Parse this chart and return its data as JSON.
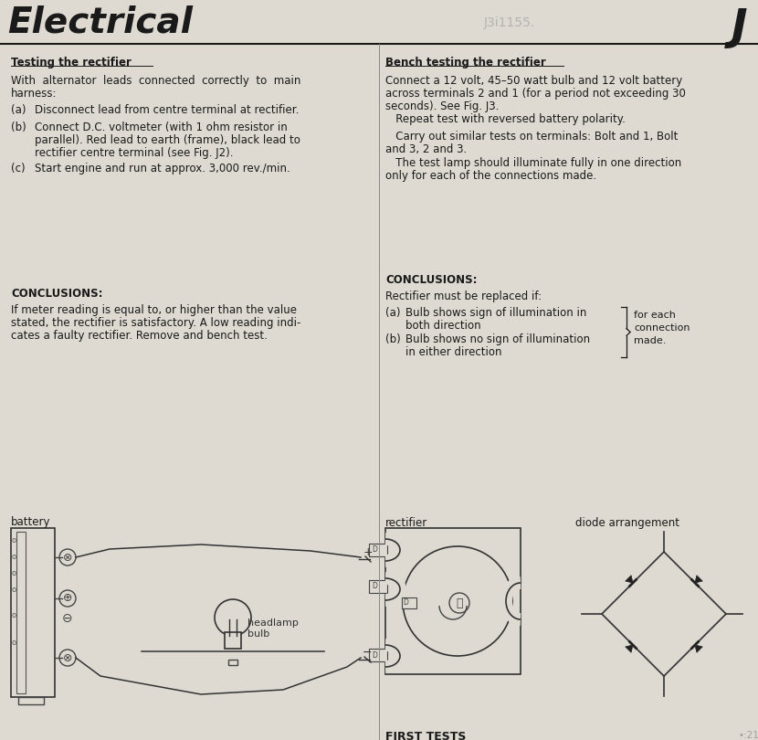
{
  "title": "Electrical",
  "bg_color": "#dedad2",
  "text_color": "#1a1a1a",
  "section_J": "J",
  "watermark": "J3i1155.",
  "page_num": "•:21",
  "left_col": {
    "heading1": "Testing the rectifier",
    "para1a": "With  alternator  leads  connected  correctly  to  main",
    "para1b": "harness:",
    "item_a_label": "(a)",
    "item_a": "Disconnect lead from centre terminal at rectifier.",
    "item_b_label": "(b)",
    "item_b1": "Connect D.C. voltmeter (with 1 ohm resistor in",
    "item_b2": "parallel). Red lead to earth (frame), black lead to",
    "item_b3": "rectifier centre terminal (see Fig. J2).",
    "item_c_label": "(c)",
    "item_c": "Start engine and run at approx. 3,000 rev./min.",
    "conclusions_head": "CONCLUSIONS:",
    "conclusions_b1": "If meter reading is equal to, or higher than the value",
    "conclusions_b2": "stated, the rectifier is satisfactory. A low reading indi-",
    "conclusions_b3": "cates a faulty rectifier. Remove and bench test.",
    "battery_label": "battery"
  },
  "right_col": {
    "heading1": "Bench testing the rectifier",
    "para1a": "Connect a 12 volt, 45–50 watt bulb and 12 volt battery",
    "para1b": "across terminals 2 and 1 (for a period not exceeding 30",
    "para1c": "seconds). See Fig. J3.",
    "para2": "   Repeat test with reversed battery polarity.",
    "para3a": "   Carry out similar tests on terminals: Bolt and 1, Bolt",
    "para3b": "and 3, 2 and 3.",
    "para4a": "   The test lamp should illuminate fully in one direction",
    "para4b": "only for each of the connections made.",
    "conclusions_head": "CONCLUSIONS:",
    "conclusions_sub": "Rectifier must be replaced if:",
    "item_a_label": "(a)",
    "item_a1": "Bulb shows sign of illumination in",
    "item_a2": "both direction",
    "item_b_label": "(b)",
    "item_b1": "Bulb shows no sign of illumination",
    "item_b2": "in either direction",
    "brace_line1": "for each",
    "brace_line2": "connection",
    "brace_line3": "made.",
    "first_tests": "FIRST TESTS",
    "diode_label": "diode arrangement",
    "rectifier_label": "rectifier",
    "headlamp_label": "headlamp\nbulb"
  }
}
